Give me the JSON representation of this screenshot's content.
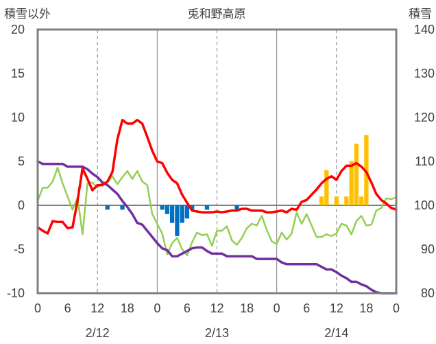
{
  "chart_data": {
    "type": "line",
    "title": "兎和野高原",
    "y_left_label": "積雪以外",
    "y_right_label": "積雪",
    "y_left_range": [
      -10,
      20
    ],
    "y_left_ticks": [
      "-10",
      "-5",
      "0",
      "5",
      "10",
      "15",
      "20"
    ],
    "y_right_range": [
      80,
      140
    ],
    "y_right_ticks": [
      "80",
      "90",
      "100",
      "110",
      "120",
      "130",
      "140"
    ],
    "x_range": [
      0,
      72
    ],
    "x_unit": "hours from 2/12 00:00",
    "x_tick_labels": [
      "0",
      "6",
      "12",
      "18",
      "0",
      "6",
      "12",
      "18",
      "0",
      "6",
      "12",
      "18",
      "0"
    ],
    "day_labels": [
      "2/12",
      "2/13",
      "2/14"
    ],
    "grid": "dashed vertical every 12 hours, solid at day boundaries, solid zero line",
    "colors": {
      "temperature": "#ff0000",
      "green_series": "#92d050",
      "snow_depth": "#7030a0",
      "positive_bars": "#ffc000",
      "negative_bars": "#0070c0",
      "axis": "#808080"
    },
    "series_red": [
      [
        0,
        -2.5
      ],
      [
        1,
        -2.9
      ],
      [
        2,
        -3.2
      ],
      [
        3,
        -1.8
      ],
      [
        4,
        -1.9
      ],
      [
        5,
        -1.9
      ],
      [
        6,
        -2.6
      ],
      [
        7,
        -2.5
      ],
      [
        8,
        0.5
      ],
      [
        9,
        4.2
      ],
      [
        10,
        3.0
      ],
      [
        11,
        1.7
      ],
      [
        12,
        2.3
      ],
      [
        13,
        2.3
      ],
      [
        14,
        2.7
      ],
      [
        15,
        3.8
      ],
      [
        16,
        7.5
      ],
      [
        17,
        9.7
      ],
      [
        18,
        9.3
      ],
      [
        19,
        9.3
      ],
      [
        20,
        9.7
      ],
      [
        21,
        9.3
      ],
      [
        22,
        7.8
      ],
      [
        23,
        6.2
      ],
      [
        24,
        5.0
      ],
      [
        25,
        4.8
      ],
      [
        26,
        3.7
      ],
      [
        27,
        2.9
      ],
      [
        28,
        2.5
      ],
      [
        29,
        1.2
      ],
      [
        30,
        0.3
      ],
      [
        31,
        -0.6
      ],
      [
        32,
        -0.7
      ],
      [
        33,
        -0.8
      ],
      [
        34,
        -0.8
      ],
      [
        35,
        -0.8
      ],
      [
        36,
        -0.7
      ],
      [
        37,
        -0.8
      ],
      [
        38,
        -0.7
      ],
      [
        39,
        -0.6
      ],
      [
        40,
        -0.6
      ],
      [
        41,
        -0.4
      ],
      [
        42,
        -0.4
      ],
      [
        43,
        -0.6
      ],
      [
        44,
        -0.6
      ],
      [
        45,
        -0.6
      ],
      [
        46,
        -0.8
      ],
      [
        47,
        -0.8
      ],
      [
        48,
        -0.7
      ],
      [
        49,
        -0.6
      ],
      [
        50,
        -0.8
      ],
      [
        51,
        -0.4
      ],
      [
        52,
        -0.5
      ],
      [
        53,
        0.4
      ],
      [
        54,
        0.6
      ],
      [
        55,
        1.2
      ],
      [
        56,
        1.8
      ],
      [
        57,
        2.5
      ],
      [
        58,
        3.0
      ],
      [
        59,
        3.3
      ],
      [
        60,
        2.9
      ],
      [
        61,
        3.9
      ],
      [
        62,
        4.5
      ],
      [
        63,
        4.5
      ],
      [
        64,
        4.8
      ],
      [
        65,
        4.4
      ],
      [
        66,
        3.8
      ],
      [
        67,
        2.6
      ],
      [
        68,
        1.3
      ],
      [
        69,
        0.6
      ],
      [
        70,
        0.2
      ],
      [
        71,
        -0.3
      ],
      [
        72,
        -0.5
      ]
    ],
    "series_green": [
      [
        0,
        0.5
      ],
      [
        1,
        2.0
      ],
      [
        2,
        2.0
      ],
      [
        3,
        2.7
      ],
      [
        4,
        4.3
      ],
      [
        5,
        2.5
      ],
      [
        6,
        1.0
      ],
      [
        7,
        -0.5
      ],
      [
        8,
        0.9
      ],
      [
        9,
        -3.3
      ],
      [
        10,
        2.5
      ],
      [
        11,
        2.6
      ],
      [
        12,
        2.0
      ],
      [
        13,
        2.6
      ],
      [
        14,
        2.6
      ],
      [
        15,
        3.3
      ],
      [
        16,
        2.4
      ],
      [
        17,
        3.2
      ],
      [
        18,
        3.9
      ],
      [
        19,
        3.0
      ],
      [
        20,
        3.9
      ],
      [
        21,
        2.7
      ],
      [
        22,
        2.3
      ],
      [
        23,
        -1.0
      ],
      [
        24,
        -2.1
      ],
      [
        25,
        -3.2
      ],
      [
        26,
        -5.6
      ],
      [
        27,
        -4.3
      ],
      [
        28,
        -3.7
      ],
      [
        29,
        -5.0
      ],
      [
        30,
        -5.7
      ],
      [
        31,
        -4.2
      ],
      [
        32,
        -3.1
      ],
      [
        33,
        -3.4
      ],
      [
        34,
        -3.3
      ],
      [
        35,
        -4.6
      ],
      [
        36,
        -2.9
      ],
      [
        37,
        -2.9
      ],
      [
        38,
        -2.4
      ],
      [
        39,
        -4.0
      ],
      [
        40,
        -4.5
      ],
      [
        41,
        -3.7
      ],
      [
        42,
        -2.6
      ],
      [
        43,
        -2.1
      ],
      [
        44,
        -2.3
      ],
      [
        45,
        -1.2
      ],
      [
        46,
        -2.8
      ],
      [
        47,
        -4.1
      ],
      [
        48,
        -4.4
      ],
      [
        49,
        -3.1
      ],
      [
        50,
        -3.9
      ],
      [
        51,
        -3.2
      ],
      [
        52,
        -0.8
      ],
      [
        53,
        -2.1
      ],
      [
        54,
        -1.0
      ],
      [
        55,
        -2.3
      ],
      [
        56,
        -3.6
      ],
      [
        57,
        -3.6
      ],
      [
        58,
        -3.3
      ],
      [
        59,
        -3.5
      ],
      [
        60,
        -3.2
      ],
      [
        61,
        -2.1
      ],
      [
        62,
        -2.3
      ],
      [
        63,
        -3.3
      ],
      [
        64,
        -1.8
      ],
      [
        65,
        -1.2
      ],
      [
        66,
        -2.3
      ],
      [
        67,
        -2.2
      ],
      [
        68,
        -0.6
      ],
      [
        69,
        -0.3
      ],
      [
        70,
        0.8
      ],
      [
        71,
        0.7
      ],
      [
        72,
        0.9
      ]
    ],
    "series_snow_depth": [
      [
        0,
        110
      ],
      [
        1,
        109.4
      ],
      [
        2,
        109.4
      ],
      [
        3,
        109.4
      ],
      [
        4,
        109.4
      ],
      [
        5,
        109.4
      ],
      [
        6,
        108.8
      ],
      [
        7,
        108.8
      ],
      [
        8,
        108.8
      ],
      [
        9,
        108.8
      ],
      [
        10,
        108.2
      ],
      [
        11,
        107.2
      ],
      [
        12,
        106.4
      ],
      [
        13,
        105.2
      ],
      [
        14,
        104.6
      ],
      [
        15,
        103.6
      ],
      [
        16,
        102.6
      ],
      [
        17,
        101.0
      ],
      [
        18,
        99.6
      ],
      [
        19,
        98.0
      ],
      [
        20,
        96.0
      ],
      [
        21,
        95.6
      ],
      [
        22,
        94.2
      ],
      [
        23,
        92.8
      ],
      [
        24,
        91.4
      ],
      [
        25,
        90.2
      ],
      [
        26,
        89.8
      ],
      [
        27,
        88.4
      ],
      [
        28,
        88.4
      ],
      [
        29,
        89.0
      ],
      [
        30,
        89.6
      ],
      [
        31,
        90.2
      ],
      [
        32,
        90.4
      ],
      [
        33,
        90.4
      ],
      [
        34,
        89.6
      ],
      [
        35,
        89.0
      ],
      [
        36,
        89.0
      ],
      [
        37,
        89.0
      ],
      [
        38,
        88.4
      ],
      [
        39,
        88.4
      ],
      [
        40,
        88.4
      ],
      [
        41,
        88.4
      ],
      [
        42,
        88.4
      ],
      [
        43,
        88.4
      ],
      [
        44,
        87.8
      ],
      [
        45,
        87.8
      ],
      [
        46,
        87.8
      ],
      [
        47,
        87.8
      ],
      [
        48,
        87.8
      ],
      [
        49,
        87.0
      ],
      [
        50,
        86.6
      ],
      [
        51,
        86.6
      ],
      [
        52,
        86.6
      ],
      [
        53,
        86.6
      ],
      [
        54,
        86.6
      ],
      [
        55,
        86.6
      ],
      [
        56,
        86.6
      ],
      [
        57,
        86.0
      ],
      [
        58,
        85.4
      ],
      [
        59,
        85.4
      ],
      [
        60,
        84.8
      ],
      [
        61,
        84.0
      ],
      [
        62,
        83.4
      ],
      [
        63,
        82.6
      ],
      [
        64,
        82.6
      ],
      [
        65,
        82.0
      ],
      [
        66,
        81.6
      ],
      [
        67,
        80.8
      ],
      [
        68,
        80.2
      ],
      [
        69,
        80.0
      ],
      [
        70,
        80.0
      ],
      [
        71,
        80.0
      ],
      [
        72,
        80.0
      ]
    ],
    "bars_positive": [
      [
        57,
        1
      ],
      [
        58,
        4
      ],
      [
        60,
        1
      ],
      [
        62,
        1
      ],
      [
        63,
        5
      ],
      [
        64,
        7
      ],
      [
        65,
        1
      ],
      [
        66,
        8
      ]
    ],
    "bars_negative": [
      [
        14,
        -0.5
      ],
      [
        17,
        -0.5
      ],
      [
        25,
        -0.5
      ],
      [
        26,
        -1.0
      ],
      [
        27,
        -2.0
      ],
      [
        28,
        -3.5
      ],
      [
        29,
        -2.0
      ],
      [
        30,
        -1.5
      ],
      [
        31,
        -0.5
      ],
      [
        34,
        -0.5
      ],
      [
        40,
        -0.5
      ]
    ]
  }
}
